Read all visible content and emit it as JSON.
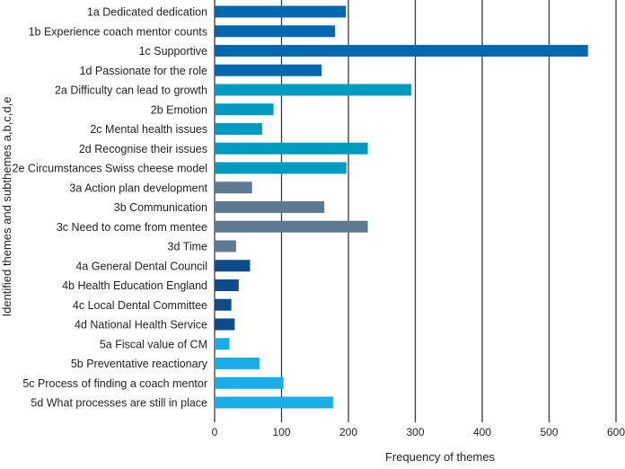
{
  "chart_data": {
    "type": "bar",
    "orientation": "horizontal",
    "title": "",
    "xlabel": "Frequency of themes",
    "ylabel": "Identified themes and subthemes a,b,c,d,e",
    "xlim": [
      0,
      600
    ],
    "xticks": [
      0,
      100,
      200,
      300,
      400,
      500,
      600
    ],
    "grid": "vertical",
    "categories": [
      "1a Dedicated dedication",
      "1b Experience coach mentor counts",
      "1c Supportive",
      "1d Passionate for the role",
      "2a Difficulty can lead to growth",
      "2b Emotion",
      "2c Mental health issues",
      "2d Recognise their issues",
      "2e Circumstances Swiss cheese model",
      "3a Action plan development",
      "3b Communication",
      "3c Need to come from mentee",
      "3d Time",
      "4a General Dental Council",
      "4b Health Education England",
      "4c Local Dental Committee",
      "4d National Health Service",
      "5a Fiscal value of CM",
      "5b Preventative reactionary",
      "5c Process of finding a coach mentor",
      "5d What processes are still in place"
    ],
    "values": [
      196,
      180,
      558,
      160,
      294,
      88,
      71,
      229,
      197,
      56,
      164,
      229,
      32,
      53,
      36,
      25,
      30,
      22,
      67,
      103,
      177
    ],
    "groups": [
      "1",
      "1",
      "1",
      "1",
      "2",
      "2",
      "2",
      "2",
      "2",
      "3",
      "3",
      "3",
      "3",
      "4",
      "4",
      "4",
      "4",
      "5",
      "5",
      "5",
      "5"
    ],
    "group_colors": {
      "1": "#0068ae",
      "2": "#009ac2",
      "3": "#5c7b92",
      "4": "#0d4b8c",
      "5": "#19aee9"
    }
  }
}
